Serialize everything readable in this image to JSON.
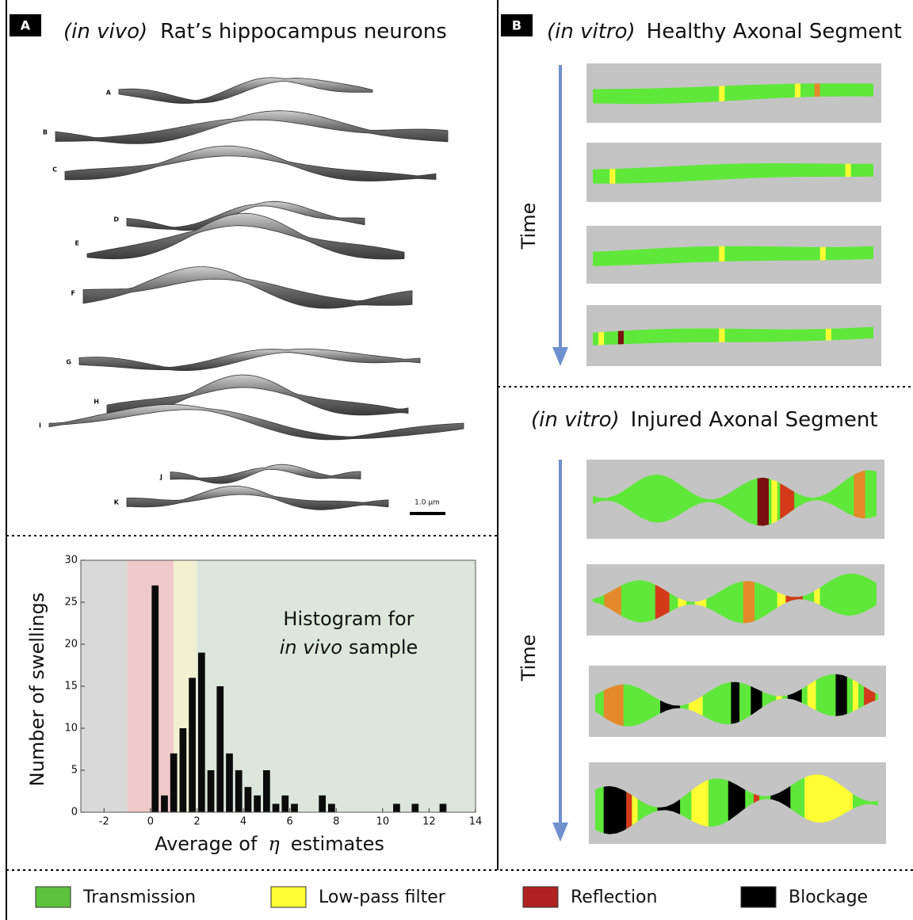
{
  "panels": {
    "a": {
      "letter": "A",
      "title_italic": "(in vivo)",
      "title": "Rat’s hippocampus neurons",
      "neuron_labels": [
        "A",
        "B",
        "C",
        "D",
        "E",
        "F",
        "G",
        "H",
        "I",
        "J",
        "K"
      ],
      "scale_bar": "1.0 µm"
    },
    "b": {
      "letter": "B",
      "healthy": {
        "title_italic": "(in vitro)",
        "title": "Healthy Axonal Segment",
        "axis_label": "Time"
      },
      "injured": {
        "title_italic": "(in vitro)",
        "title": "Injured Axonal Segment",
        "axis_label": "Time"
      }
    }
  },
  "chart_data": {
    "type": "histogram",
    "annotation": {
      "line1": "Histogram for",
      "italic": "in vivo",
      "rest": "sample"
    },
    "ylabel": "Number of swellings",
    "xlabel": {
      "before": "Average of",
      "symbol": "η",
      "after": "estimates"
    },
    "bins": [
      0,
      0.4,
      0.8,
      1.2,
      1.6,
      2,
      2.4,
      2.8,
      3.2,
      3.6,
      4,
      4.4,
      4.8,
      5.2,
      5.6,
      6,
      6.4,
      6.8,
      7.2,
      7.6,
      8,
      8.4,
      8.8,
      9.2,
      9.6,
      10,
      10.4,
      10.8,
      11.2,
      11.6,
      12,
      12.4,
      12.8
    ],
    "counts": [
      27,
      2,
      7,
      10,
      16,
      19,
      5,
      15,
      7,
      5,
      3,
      2,
      5,
      1,
      2,
      1,
      0,
      0,
      2,
      1,
      0,
      0,
      0,
      0,
      0,
      0,
      1,
      0,
      1,
      0,
      0,
      1
    ],
    "color": "#0b0b0b",
    "regions": [
      {
        "from": -3,
        "to": -1,
        "color": "#d9d9d9"
      },
      {
        "from": -1,
        "to": 1,
        "color": "#efc9c9"
      },
      {
        "from": 1,
        "to": 2,
        "color": "#f1f1d2"
      },
      {
        "from": 2,
        "to": 14,
        "color": "#dce6dc"
      }
    ],
    "xlim": [
      -3,
      14
    ],
    "xticks": [
      -2,
      0,
      2,
      4,
      6,
      8,
      10,
      12,
      14
    ],
    "ylim": [
      0,
      30
    ],
    "yticks": [
      0,
      5,
      10,
      15,
      20,
      25,
      30
    ]
  },
  "legend": [
    {
      "label": "Transmission",
      "color": "#5cc33c"
    },
    {
      "label": "Low-pass filter",
      "color": "#ffff33"
    },
    {
      "label": "Reflection",
      "color": "#b02222"
    },
    {
      "label": "Blockage",
      "color": "#000000"
    }
  ]
}
